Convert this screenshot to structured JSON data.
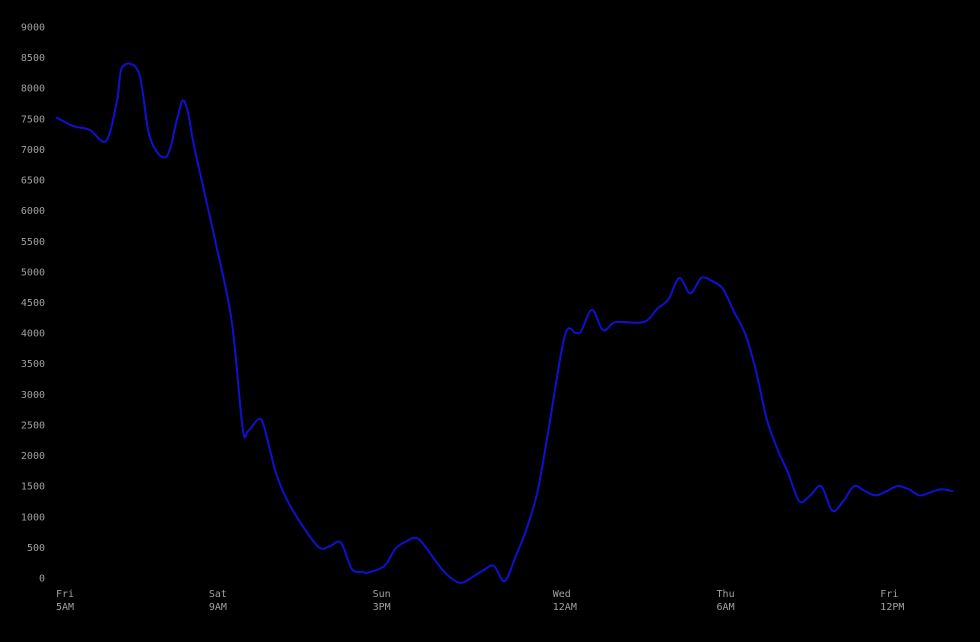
{
  "chart_data": {
    "type": "line",
    "title": "",
    "xlabel": "",
    "ylabel": "",
    "ylim": [
      0,
      9000
    ],
    "grid": false,
    "legend": "none",
    "line_color": "#1010d0",
    "background_color": "#000000",
    "tick_label_color": "#a0a0a0",
    "y_ticks": [
      0,
      500,
      1000,
      1500,
      2000,
      2500,
      3000,
      3500,
      4000,
      4500,
      5000,
      5500,
      6000,
      6500,
      7000,
      7500,
      8000,
      8500,
      9000
    ],
    "x_domain_hours": [
      0,
      164.5
    ],
    "x_ticks": [
      {
        "hours": 0,
        "day": "Fri",
        "time": "5AM"
      },
      {
        "hours": 28,
        "day": "Sat",
        "time": "9AM"
      },
      {
        "hours": 58,
        "day": "Sun",
        "time": "3PM"
      },
      {
        "hours": 91,
        "day": "Wed",
        "time": "12AM"
      },
      {
        "hours": 121,
        "day": "Thu",
        "time": "6AM"
      },
      {
        "hours": 151,
        "day": "Fri",
        "time": "12PM"
      }
    ],
    "series": [
      {
        "x_hours": [
          0,
          3,
          6,
          9,
          11,
          12,
          15,
          17,
          20,
          22,
          23,
          24,
          25,
          27,
          29,
          32,
          34,
          35,
          37,
          38,
          40,
          42,
          45,
          48,
          50,
          52,
          54,
          56,
          57,
          60,
          62,
          64,
          66,
          68,
          70,
          72,
          74,
          76,
          78,
          80,
          82,
          84,
          86,
          88,
          90,
          93,
          95,
          96,
          98,
          100,
          102,
          104,
          106,
          108,
          110,
          112,
          114,
          116,
          118,
          120,
          122,
          124,
          126,
          128,
          130,
          132,
          134,
          136,
          138,
          140,
          142,
          144,
          146,
          148,
          150,
          152,
          154,
          156,
          158,
          160,
          162,
          164
        ],
        "y": [
          7520,
          7380,
          7320,
          7140,
          7800,
          8350,
          8250,
          7200,
          6880,
          7500,
          7800,
          7600,
          7100,
          6300,
          5500,
          4200,
          2450,
          2400,
          2600,
          2450,
          1750,
          1300,
          850,
          500,
          520,
          580,
          150,
          100,
          90,
          200,
          480,
          600,
          650,
          450,
          200,
          10,
          -80,
          10,
          120,
          200,
          -50,
          350,
          800,
          1400,
          2400,
          3950,
          4000,
          4030,
          4380,
          4050,
          4170,
          4180,
          4170,
          4200,
          4400,
          4550,
          4900,
          4650,
          4900,
          4850,
          4720,
          4350,
          4000,
          3400,
          2600,
          2100,
          1700,
          1250,
          1350,
          1500,
          1100,
          1250,
          1500,
          1420,
          1350,
          1420,
          1500,
          1450,
          1350,
          1400,
          1450,
          1420
        ]
      }
    ]
  }
}
